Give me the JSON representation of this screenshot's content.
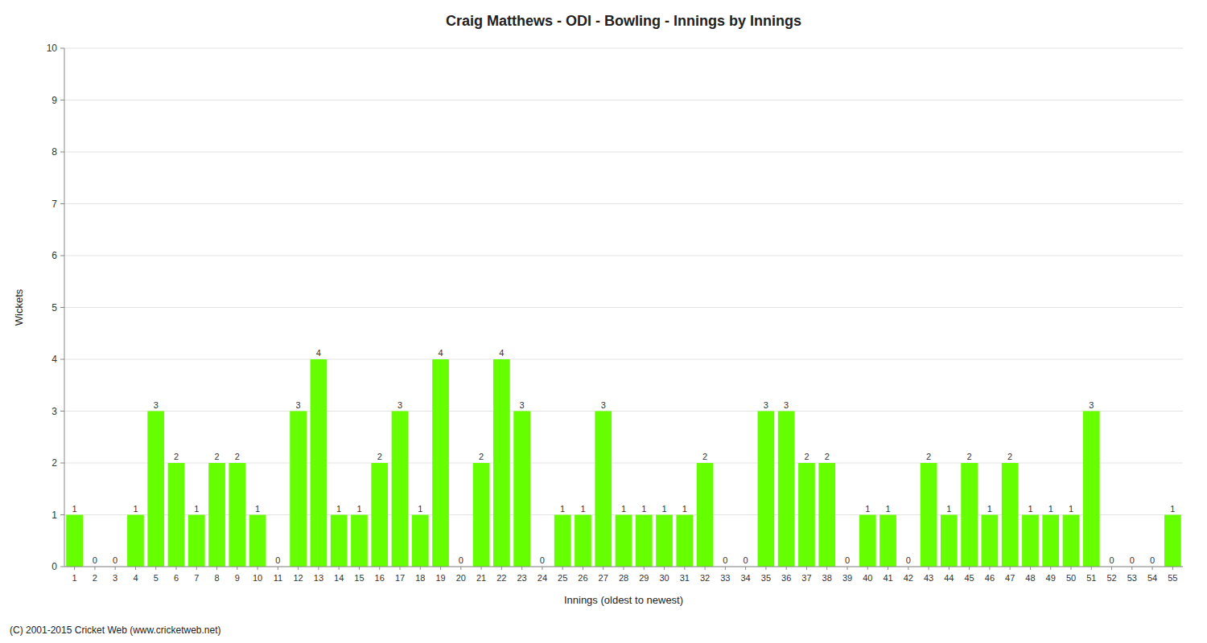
{
  "chart_data": {
    "type": "bar",
    "title": "Craig Matthews - ODI - Bowling - Innings by Innings",
    "x_label": "Innings (oldest to newest)",
    "y_label": "Wickets",
    "annotations": [
      "(C) 2001-2015 Cricket Web (www.cricketweb.net)"
    ],
    "categories": [
      "1",
      "2",
      "3",
      "4",
      "5",
      "6",
      "7",
      "8",
      "9",
      "10",
      "11",
      "12",
      "13",
      "14",
      "15",
      "16",
      "17",
      "18",
      "19",
      "20",
      "21",
      "22",
      "23",
      "24",
      "25",
      "26",
      "27",
      "28",
      "29",
      "30",
      "31",
      "32",
      "33",
      "34",
      "35",
      "36",
      "37",
      "38",
      "39",
      "40",
      "41",
      "42",
      "43",
      "44",
      "45",
      "46",
      "47",
      "48",
      "49",
      "50",
      "51",
      "52",
      "53",
      "54",
      "55"
    ],
    "values": [
      1,
      0,
      0,
      1,
      3,
      2,
      1,
      2,
      2,
      1,
      0,
      3,
      4,
      1,
      1,
      2,
      3,
      1,
      4,
      0,
      2,
      4,
      3,
      0,
      1,
      1,
      3,
      1,
      1,
      1,
      1,
      2,
      0,
      0,
      3,
      3,
      2,
      2,
      0,
      1,
      1,
      0,
      2,
      1,
      2,
      1,
      2,
      1,
      1,
      1,
      3,
      0,
      0,
      0,
      1
    ],
    "color": "#66ff00",
    "ylim": [
      0,
      10
    ],
    "yticks": [
      0,
      1,
      2,
      3,
      4,
      5,
      6,
      7,
      8,
      9,
      10
    ],
    "grid": true,
    "data_labels": true
  }
}
